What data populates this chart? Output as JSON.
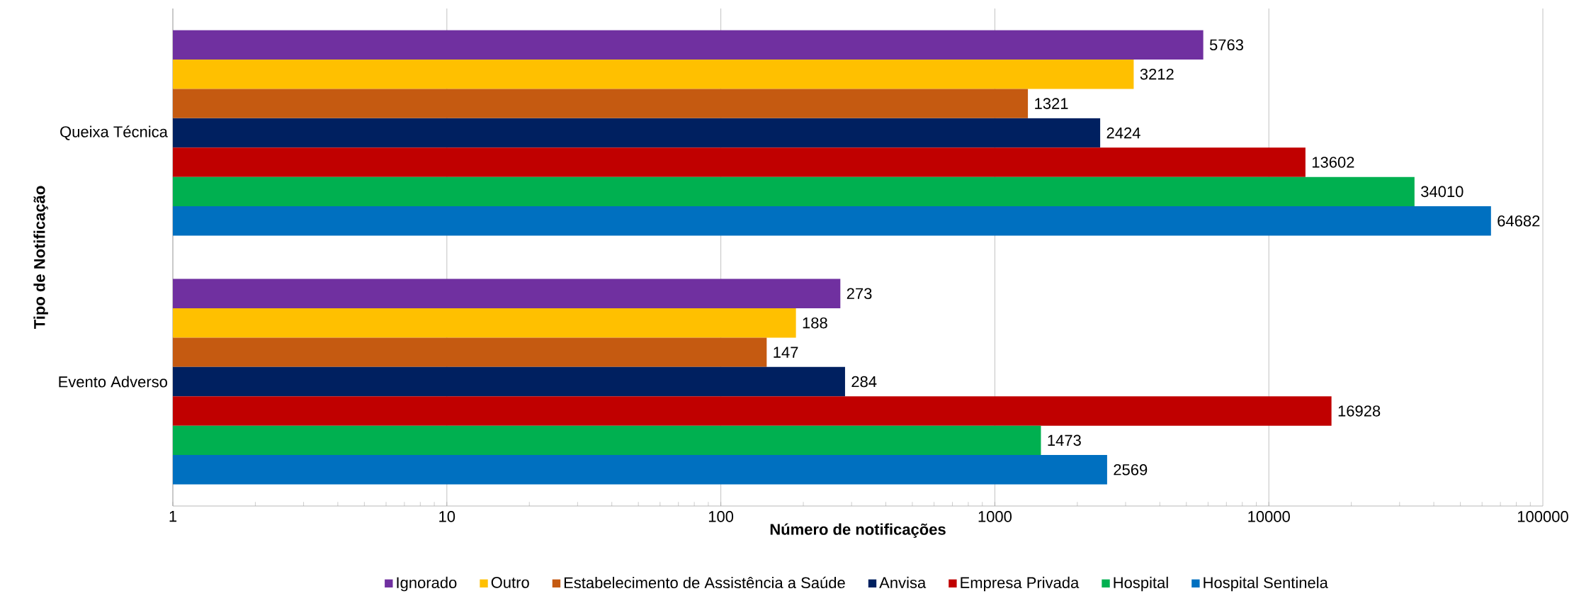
{
  "chart_data": {
    "type": "bar",
    "orientation": "horizontal",
    "xlabel": "Número de notificações",
    "ylabel": "Tipo de Notificação",
    "categories": [
      "Queixa Técnica",
      "Evento Adverso"
    ],
    "log": "x",
    "xlim": [
      1,
      100000
    ],
    "xticks": [
      1,
      10,
      100,
      1000,
      10000,
      100000
    ],
    "grid": "x",
    "legend": "bottom",
    "data_labels": true,
    "series": [
      {
        "name": "Ignorado",
        "color": "#7030a0",
        "values": [
          5763,
          273
        ]
      },
      {
        "name": "Outro",
        "color": "#ffc000",
        "values": [
          3212,
          188
        ]
      },
      {
        "name": "Estabelecimento de Assistência a Saúde",
        "color": "#c55a11",
        "values": [
          1321,
          147
        ]
      },
      {
        "name": "Anvisa",
        "color": "#002060",
        "values": [
          2424,
          284
        ]
      },
      {
        "name": "Empresa Privada",
        "color": "#c00000",
        "values": [
          13602,
          16928
        ]
      },
      {
        "name": "Hospital",
        "color": "#00b050",
        "values": [
          34010,
          1473
        ]
      },
      {
        "name": "Hospital Sentinela",
        "color": "#0070c0",
        "values": [
          64682,
          2569
        ]
      }
    ]
  }
}
